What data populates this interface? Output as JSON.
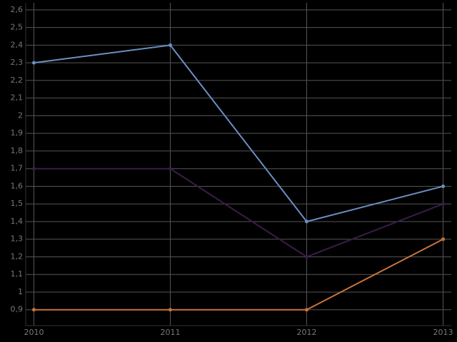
{
  "chart_data": {
    "type": "line",
    "x": [
      2010,
      2011,
      2012,
      2013
    ],
    "xlim": [
      2009.94,
      2013.06
    ],
    "xticks": [
      2010,
      2011,
      2012,
      2013
    ],
    "ylim": [
      0.81,
      2.64
    ],
    "yticks": [
      {
        "value": 0.9,
        "label": "0,9"
      },
      1,
      {
        "value": 1.1,
        "label": "1,1"
      },
      {
        "value": 1.2,
        "label": "1,2"
      },
      {
        "value": 1.3,
        "label": "1,3"
      },
      {
        "value": 1.4,
        "label": "1,4"
      },
      {
        "value": 1.5,
        "label": "1,5"
      },
      {
        "value": 1.6,
        "label": "1,6"
      },
      {
        "value": 1.7,
        "label": "1,7"
      },
      {
        "value": 1.8,
        "label": "1,8"
      },
      {
        "value": 1.9,
        "label": "1,9"
      },
      2,
      {
        "value": 2.1,
        "label": "2,1"
      },
      {
        "value": 2.2,
        "label": "2,2"
      },
      {
        "value": 2.3,
        "label": "2,3"
      },
      {
        "value": 2.4,
        "label": "2,4"
      },
      {
        "value": 2.5,
        "label": "2,5"
      },
      {
        "value": 2.6,
        "label": "2,6"
      }
    ],
    "grid": true,
    "series": [
      {
        "color": "#6b8fc4",
        "values": [
          2.3,
          2.4,
          1.4,
          1.6
        ]
      },
      {
        "color": "#3a1d48",
        "values": [
          1.7,
          1.7,
          1.2,
          1.5
        ]
      },
      {
        "color": "#c8743a",
        "values": [
          0.9,
          0.9,
          0.9,
          1.3
        ]
      }
    ]
  }
}
